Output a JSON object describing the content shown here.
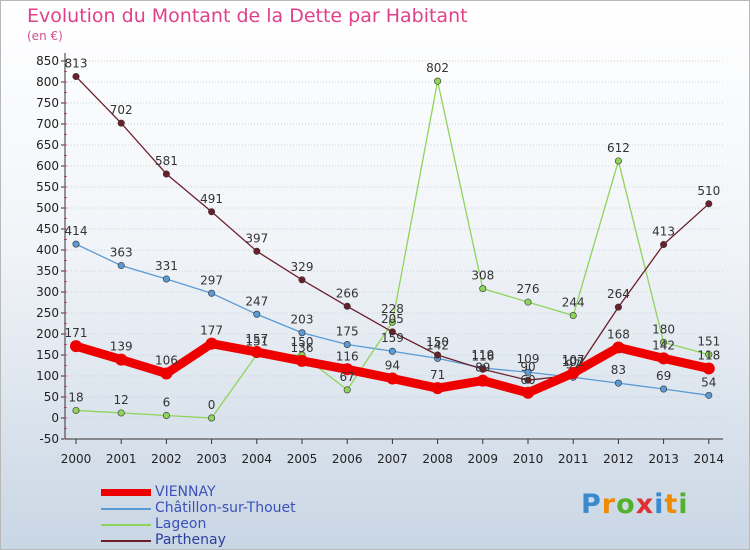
{
  "header": {
    "title": "Evolution du Montant de la Dette par Habitant",
    "subtitle": "(en €)"
  },
  "colors": {
    "title": "#e0408a",
    "vienay": "#ee0000",
    "chatillon": "#5b9bd5",
    "lageon": "#8fd45a",
    "parthenay": "#6b1f2a",
    "axis": "#333333",
    "grid": "#c9d3df"
  },
  "chart_data": {
    "type": "line",
    "title": "Evolution du Montant de la Dette par Habitant",
    "ylabel": "(en €)",
    "xlabel": "",
    "ylim": [
      -50,
      850
    ],
    "yticks": [
      -50,
      0,
      50,
      100,
      150,
      200,
      250,
      300,
      350,
      400,
      450,
      500,
      550,
      600,
      650,
      700,
      750,
      800,
      850
    ],
    "x": [
      "2000",
      "2001",
      "2002",
      "2003",
      "2004",
      "2005",
      "2006",
      "2007",
      "2008",
      "2009",
      "2010",
      "2011",
      "2012",
      "2013",
      "2014"
    ],
    "grid": "horizontal",
    "legend_position": "bottom-left",
    "series": [
      {
        "name": "VIENNAY",
        "color": "#ee0000",
        "values": [
          171,
          139,
          106,
          177,
          157,
          136,
          116,
          94,
          71,
          89,
          60,
          107,
          168,
          142,
          118
        ]
      },
      {
        "name": "Châtillon-sur-Thouet",
        "color": "#5b9bd5",
        "values": [
          414,
          363,
          331,
          297,
          247,
          203,
          175,
          159,
          142,
          119,
          109,
          97,
          83,
          69,
          54
        ]
      },
      {
        "name": "Lageon",
        "color": "#8fd45a",
        "values": [
          18,
          12,
          6,
          0,
          151,
          150,
          67,
          228,
          802,
          308,
          276,
          244,
          612,
          180,
          151
        ]
      },
      {
        "name": "Parthenay",
        "color": "#6b1f2a",
        "values": [
          813,
          702,
          581,
          491,
          397,
          329,
          266,
          205,
          150,
          116,
          90,
          102,
          264,
          413,
          510
        ]
      }
    ]
  },
  "legend": {
    "items": [
      {
        "label": "VIENNAY",
        "color": "#ee0000"
      },
      {
        "label": "Châtillon-sur-Thouet",
        "color": "#5b9bd5"
      },
      {
        "label": "Lageon",
        "color": "#8fd45a"
      },
      {
        "label": "Parthenay",
        "color": "#6b1f2a"
      }
    ]
  },
  "brand": {
    "letters": [
      "P",
      "r",
      "o",
      "x",
      "i",
      "t",
      "i"
    ],
    "colors": [
      "#3a8ad0",
      "#f08a00",
      "#55b030",
      "#e03030",
      "#3a8ad0",
      "#f08a00",
      "#55b030"
    ]
  }
}
